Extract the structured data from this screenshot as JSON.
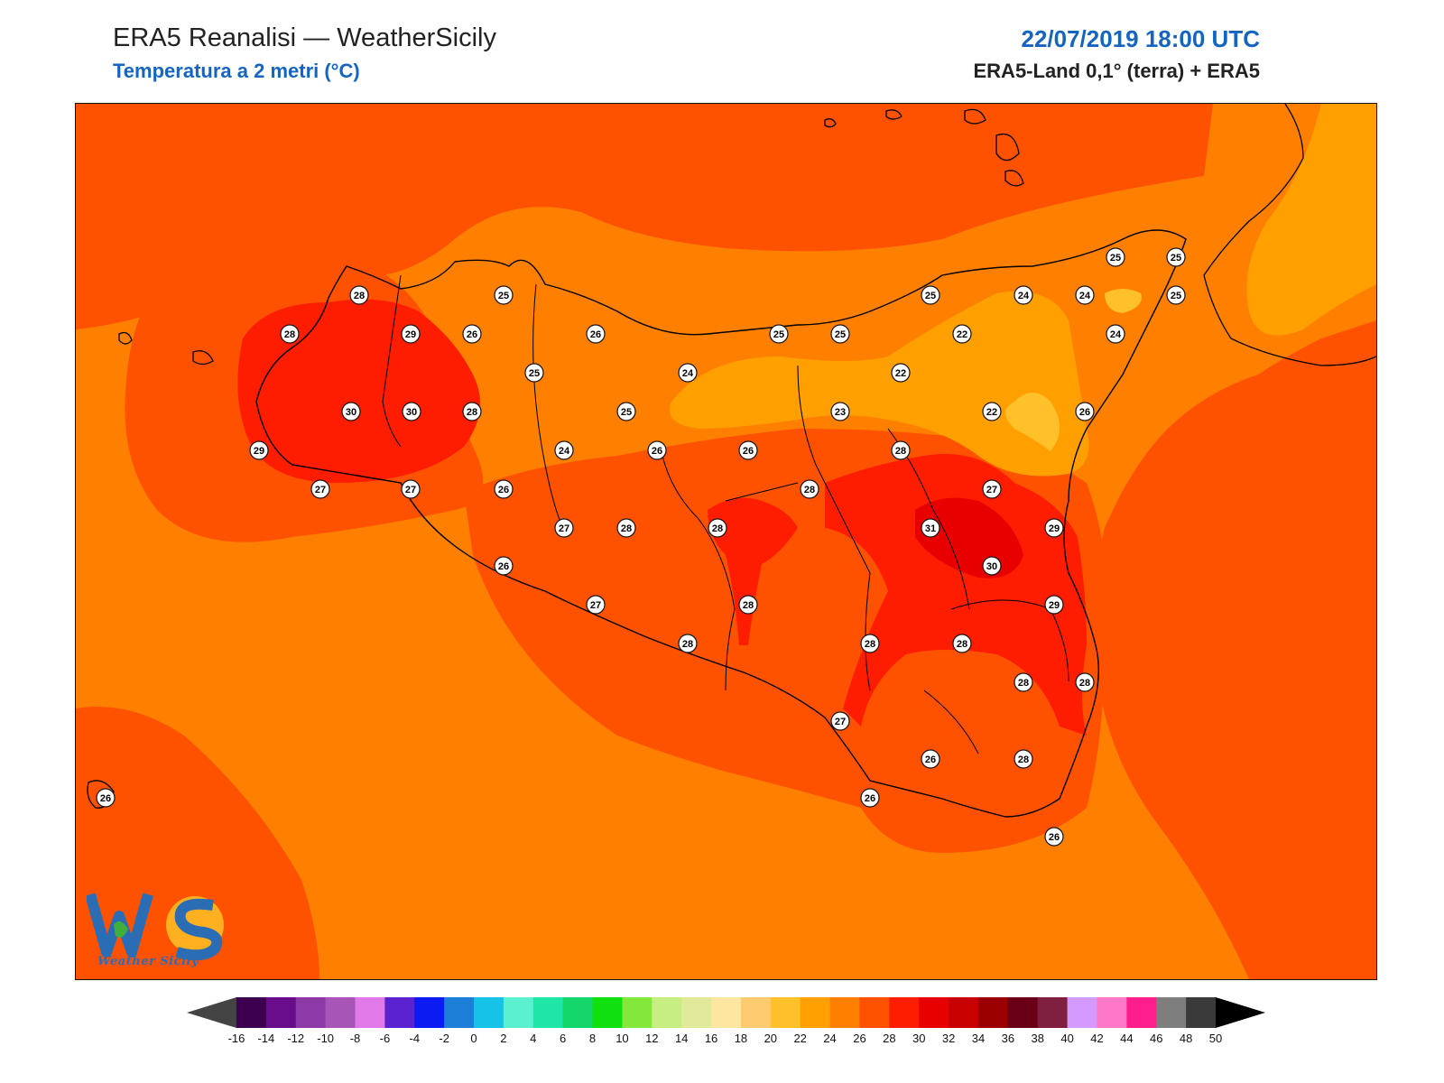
{
  "header": {
    "title": "ERA5 Reanalisi — WeatherSicily",
    "subtitle": "Temperatura a 2 metri (°C)",
    "datetime": "22/07/2019 18:00 UTC",
    "source": "ERA5-Land 0,1° (terra) + ERA5"
  },
  "logo": {
    "text": "Weather Sicily"
  },
  "colorbar": {
    "ticks": [
      "-16",
      "-14",
      "-12",
      "-10",
      "-8",
      "-6",
      "-4",
      "-2",
      "0",
      "2",
      "4",
      "6",
      "8",
      "10",
      "12",
      "14",
      "16",
      "18",
      "20",
      "22",
      "24",
      "26",
      "28",
      "30",
      "32",
      "34",
      "36",
      "38",
      "40",
      "42",
      "44",
      "46",
      "48",
      "50"
    ],
    "colors": [
      "#3d0050",
      "#6a0d8a",
      "#8b3aa6",
      "#a855b8",
      "#e07ae8",
      "#5b22cf",
      "#0b1bf2",
      "#1e7fd8",
      "#16c3e6",
      "#5af0d0",
      "#1ee6a8",
      "#14d66a",
      "#10e010",
      "#84e83c",
      "#c7ee80",
      "#e0ea9a",
      "#fde6a0",
      "#ffcb70",
      "#ffc02a",
      "#ffa000",
      "#ff8000",
      "#ff5200",
      "#ff1d00",
      "#e80000",
      "#c80000",
      "#9a0000",
      "#6a0018",
      "#802040",
      "#d49aff",
      "#ff78c8",
      "#ff1e8c",
      "#7e7e7e",
      "#3a3a3a"
    ]
  },
  "colors": {
    "c22": "#ffa000",
    "c24": "#ff8000",
    "c26": "#ff5200",
    "c28": "#ff1d00",
    "c30": "#e80000",
    "c20": "#ffc02a"
  },
  "stations": [
    {
      "v": "28"
    },
    {
      "v": "25"
    },
    {
      "v": "28"
    },
    {
      "v": "29"
    },
    {
      "v": "26"
    },
    {
      "v": "26"
    },
    {
      "v": "25"
    },
    {
      "v": "25"
    },
    {
      "v": "25"
    },
    {
      "v": "24"
    },
    {
      "v": "24"
    },
    {
      "v": "25"
    },
    {
      "v": "25"
    },
    {
      "v": "25"
    },
    {
      "v": "25"
    },
    {
      "v": "24"
    },
    {
      "v": "22"
    },
    {
      "v": "24"
    },
    {
      "v": "22"
    },
    {
      "v": "30"
    },
    {
      "v": "30"
    },
    {
      "v": "28"
    },
    {
      "v": "25"
    },
    {
      "v": "23"
    },
    {
      "v": "22"
    },
    {
      "v": "26"
    },
    {
      "v": "29"
    },
    {
      "v": "24"
    },
    {
      "v": "26"
    },
    {
      "v": "26"
    },
    {
      "v": "28"
    },
    {
      "v": "27"
    },
    {
      "v": "27"
    },
    {
      "v": "26"
    },
    {
      "v": "28"
    },
    {
      "v": "27"
    },
    {
      "v": "27"
    },
    {
      "v": "28"
    },
    {
      "v": "28"
    },
    {
      "v": "31"
    },
    {
      "v": "29"
    },
    {
      "v": "26"
    },
    {
      "v": "27"
    },
    {
      "v": "30"
    },
    {
      "v": "28"
    },
    {
      "v": "29"
    },
    {
      "v": "28"
    },
    {
      "v": "28"
    },
    {
      "v": "28"
    },
    {
      "v": "28"
    },
    {
      "v": "28"
    },
    {
      "v": "27"
    },
    {
      "v": "26"
    },
    {
      "v": "28"
    },
    {
      "v": "26"
    },
    {
      "v": "26"
    },
    {
      "v": "26"
    }
  ]
}
